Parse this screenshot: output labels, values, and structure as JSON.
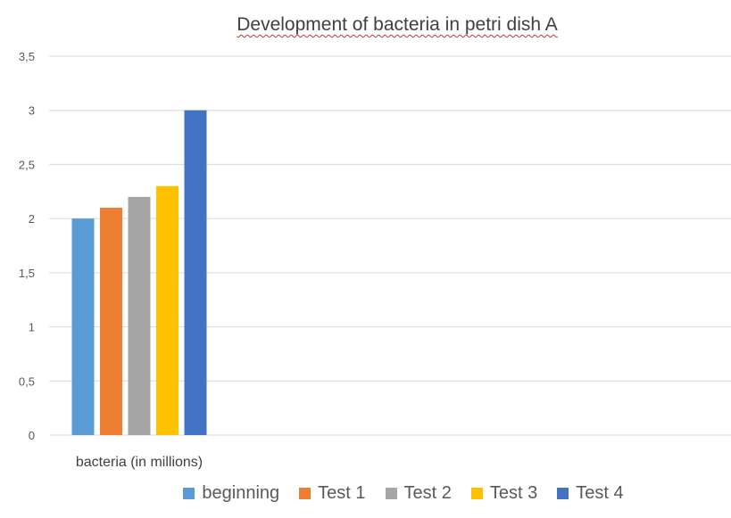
{
  "chart_data": {
    "type": "bar",
    "title": "Development of bacteria in petri dish A",
    "categories": [
      "bacteria (in millions)"
    ],
    "series": [
      {
        "name": "beginning",
        "values": [
          2.0
        ],
        "color": "#5b9bd5"
      },
      {
        "name": "Test 1",
        "values": [
          2.1
        ],
        "color": "#ed7d31"
      },
      {
        "name": "Test 2",
        "values": [
          2.2
        ],
        "color": "#a5a5a5"
      },
      {
        "name": "Test 3",
        "values": [
          2.3
        ],
        "color": "#ffc000"
      },
      {
        "name": "Test 4",
        "values": [
          3.0
        ],
        "color": "#4472c4"
      }
    ],
    "ylim": [
      0,
      3.5
    ],
    "yticks": [
      "0",
      "0,5",
      "1",
      "1,5",
      "2",
      "2,5",
      "3",
      "3,5"
    ],
    "grid": true,
    "legend_position": "bottom"
  }
}
